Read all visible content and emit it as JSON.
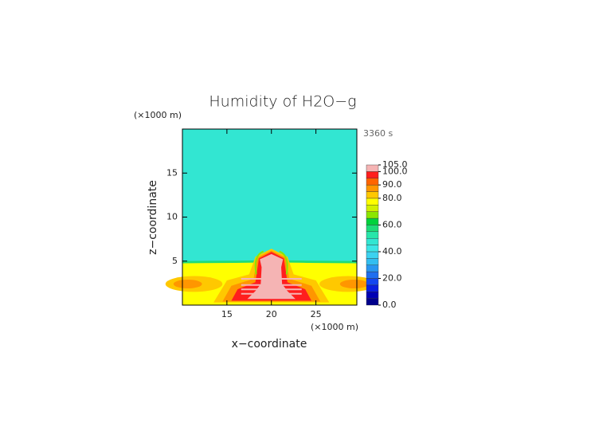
{
  "chart_data": {
    "type": "contour",
    "title": "Humidity of H2O−g",
    "time_label": "3360 s",
    "xlabel": "x−coordinate",
    "ylabel": "z−coordinate",
    "x_unit": "(×1000 m)",
    "y_unit": "(×1000 m)",
    "xlim": [
      10,
      29.6
    ],
    "ylim": [
      0,
      20
    ],
    "xticks": [
      15,
      20,
      25
    ],
    "yticks": [
      5,
      10,
      15
    ],
    "colorbar": {
      "levels": [
        0,
        5,
        10,
        15,
        20,
        25,
        30,
        35,
        40,
        45,
        50,
        55,
        60,
        65,
        70,
        75,
        80,
        85,
        90,
        95,
        100,
        105
      ],
      "colors": [
        "#00008c",
        "#0000b4",
        "#0a1ee0",
        "#1446f0",
        "#1e6ef0",
        "#2896f0",
        "#32bef0",
        "#3cd2f0",
        "#3ce6e6",
        "#32e6d2",
        "#28e6aa",
        "#1edc78",
        "#00d23c",
        "#8ce600",
        "#d2f000",
        "#ffff00",
        "#ffc800",
        "#ff9600",
        "#ff6400",
        "#ff1e1e",
        "#f5b4b4"
      ],
      "ticks": [
        {
          "value": 0,
          "label": "0.0"
        },
        {
          "value": 20,
          "label": "20.0"
        },
        {
          "value": 40,
          "label": "40.0"
        },
        {
          "value": 60,
          "label": "60.0"
        },
        {
          "value": 80,
          "label": "80.0"
        },
        {
          "value": 90,
          "label": "90.0"
        },
        {
          "value": 100,
          "label": "100.0"
        },
        {
          "value": 105,
          "label": "105.0"
        }
      ]
    }
  }
}
